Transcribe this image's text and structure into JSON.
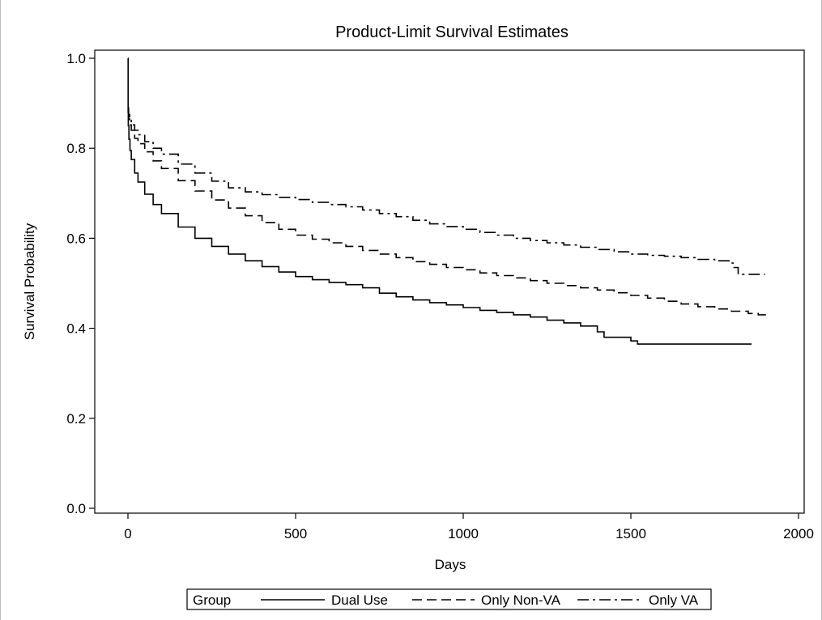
{
  "chart_data": {
    "type": "line",
    "title": "Product-Limit Survival Estimates",
    "xlabel": "Days",
    "ylabel": "Survival Probability",
    "xlim": [
      -100,
      2020
    ],
    "ylim": [
      -0.01,
      1.03
    ],
    "x_ticks": [
      0,
      500,
      1000,
      1500,
      2000
    ],
    "x_tick_labels": [
      "0",
      "500",
      "1000",
      "1500",
      "2000"
    ],
    "y_ticks": [
      0.0,
      0.2,
      0.4,
      0.6,
      0.8,
      1.0
    ],
    "y_tick_labels": [
      "0.0",
      "0.2",
      "0.4",
      "0.6",
      "0.8",
      "1.0"
    ],
    "grid": false,
    "legend": {
      "title": "Group",
      "position": "bottom"
    },
    "series": [
      {
        "name": "Dual Use",
        "dash": "solid",
        "step": true,
        "points": [
          [
            0,
            1.0
          ],
          [
            0.5,
            0.88
          ],
          [
            1,
            0.85
          ],
          [
            3,
            0.82
          ],
          [
            6,
            0.795
          ],
          [
            10,
            0.775
          ],
          [
            20,
            0.745
          ],
          [
            30,
            0.725
          ],
          [
            50,
            0.698
          ],
          [
            75,
            0.675
          ],
          [
            100,
            0.655
          ],
          [
            150,
            0.625
          ],
          [
            200,
            0.6
          ],
          [
            250,
            0.582
          ],
          [
            300,
            0.565
          ],
          [
            350,
            0.55
          ],
          [
            400,
            0.537
          ],
          [
            450,
            0.525
          ],
          [
            500,
            0.515
          ],
          [
            550,
            0.508
          ],
          [
            600,
            0.502
          ],
          [
            650,
            0.497
          ],
          [
            700,
            0.49
          ],
          [
            750,
            0.478
          ],
          [
            800,
            0.47
          ],
          [
            850,
            0.463
          ],
          [
            900,
            0.457
          ],
          [
            950,
            0.452
          ],
          [
            1000,
            0.446
          ],
          [
            1050,
            0.44
          ],
          [
            1100,
            0.435
          ],
          [
            1150,
            0.43
          ],
          [
            1200,
            0.425
          ],
          [
            1250,
            0.418
          ],
          [
            1300,
            0.412
          ],
          [
            1350,
            0.405
          ],
          [
            1400,
            0.392
          ],
          [
            1420,
            0.38
          ],
          [
            1500,
            0.372
          ],
          [
            1520,
            0.365
          ],
          [
            1860,
            0.365
          ]
        ]
      },
      {
        "name": "Only Non-VA",
        "dash": "dash",
        "step": true,
        "points": [
          [
            0,
            0.88
          ],
          [
            2,
            0.865
          ],
          [
            5,
            0.852
          ],
          [
            10,
            0.84
          ],
          [
            20,
            0.822
          ],
          [
            30,
            0.81
          ],
          [
            50,
            0.792
          ],
          [
            75,
            0.772
          ],
          [
            100,
            0.755
          ],
          [
            150,
            0.728
          ],
          [
            200,
            0.705
          ],
          [
            250,
            0.685
          ],
          [
            300,
            0.667
          ],
          [
            350,
            0.65
          ],
          [
            400,
            0.635
          ],
          [
            450,
            0.62
          ],
          [
            500,
            0.607
          ],
          [
            550,
            0.598
          ],
          [
            600,
            0.59
          ],
          [
            650,
            0.582
          ],
          [
            700,
            0.573
          ],
          [
            750,
            0.565
          ],
          [
            800,
            0.557
          ],
          [
            850,
            0.548
          ],
          [
            900,
            0.542
          ],
          [
            950,
            0.535
          ],
          [
            1000,
            0.53
          ],
          [
            1050,
            0.523
          ],
          [
            1100,
            0.517
          ],
          [
            1150,
            0.512
          ],
          [
            1200,
            0.506
          ],
          [
            1250,
            0.5
          ],
          [
            1300,
            0.495
          ],
          [
            1350,
            0.49
          ],
          [
            1400,
            0.485
          ],
          [
            1450,
            0.479
          ],
          [
            1500,
            0.473
          ],
          [
            1550,
            0.467
          ],
          [
            1600,
            0.46
          ],
          [
            1650,
            0.454
          ],
          [
            1700,
            0.448
          ],
          [
            1750,
            0.443
          ],
          [
            1800,
            0.438
          ],
          [
            1850,
            0.433
          ],
          [
            1880,
            0.43
          ],
          [
            1910,
            0.43
          ]
        ]
      },
      {
        "name": "Only VA",
        "dash": "dashdot",
        "step": true,
        "points": [
          [
            0,
            0.89
          ],
          [
            2,
            0.875
          ],
          [
            5,
            0.862
          ],
          [
            10,
            0.852
          ],
          [
            20,
            0.84
          ],
          [
            30,
            0.83
          ],
          [
            50,
            0.815
          ],
          [
            75,
            0.8
          ],
          [
            100,
            0.787
          ],
          [
            150,
            0.765
          ],
          [
            200,
            0.745
          ],
          [
            250,
            0.727
          ],
          [
            300,
            0.712
          ],
          [
            350,
            0.703
          ],
          [
            400,
            0.697
          ],
          [
            450,
            0.691
          ],
          [
            500,
            0.686
          ],
          [
            550,
            0.68
          ],
          [
            600,
            0.675
          ],
          [
            650,
            0.67
          ],
          [
            700,
            0.663
          ],
          [
            750,
            0.655
          ],
          [
            800,
            0.648
          ],
          [
            850,
            0.64
          ],
          [
            900,
            0.632
          ],
          [
            950,
            0.626
          ],
          [
            1000,
            0.62
          ],
          [
            1050,
            0.613
          ],
          [
            1100,
            0.607
          ],
          [
            1150,
            0.6
          ],
          [
            1200,
            0.595
          ],
          [
            1250,
            0.59
          ],
          [
            1300,
            0.585
          ],
          [
            1350,
            0.58
          ],
          [
            1400,
            0.575
          ],
          [
            1450,
            0.57
          ],
          [
            1500,
            0.565
          ],
          [
            1550,
            0.562
          ],
          [
            1600,
            0.56
          ],
          [
            1650,
            0.557
          ],
          [
            1700,
            0.553
          ],
          [
            1750,
            0.55
          ],
          [
            1800,
            0.545
          ],
          [
            1805,
            0.535
          ],
          [
            1820,
            0.52
          ],
          [
            1900,
            0.52
          ]
        ]
      }
    ]
  }
}
